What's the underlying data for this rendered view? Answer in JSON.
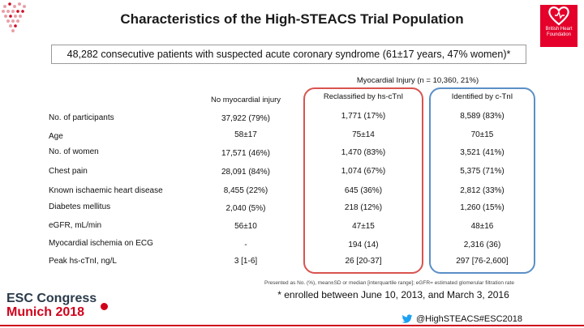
{
  "title": "Characteristics of the High-STEACS Trial Population",
  "subtitle": "48,282 consecutive patients with suspected acute coronary syndrome (61±17 years, 47% women)*",
  "logo": {
    "line1": "British Heart",
    "line2": "Foundation",
    "color": "#e4002b"
  },
  "table": {
    "group_header": "Myocardial Injury (n = 10,360, 21%)",
    "columns": [
      "No myocardial injury",
      "Reclassified by hs-cTnI",
      "Identified by c-TnI"
    ],
    "rows": [
      {
        "label": "No. of participants",
        "values": [
          "37,922 (79%)",
          "1,771 (17%)",
          "8,589 (83%)"
        ]
      },
      {
        "label": "Age",
        "values": [
          "58±17",
          "75±14",
          "70±15"
        ]
      },
      {
        "label": "No. of women",
        "values": [
          "17,571 (46%)",
          "1,470 (83%)",
          "3,521 (41%)"
        ]
      },
      {
        "label": "Chest pain",
        "values": [
          "28,091 (84%)",
          "1,074 (67%)",
          "5,375 (71%)"
        ]
      },
      {
        "label": "Known ischaemic heart disease",
        "values": [
          "8,455 (22%)",
          "645 (36%)",
          "2,812 (33%)"
        ]
      },
      {
        "label": "Diabetes mellitus",
        "values": [
          "2,040 (5%)",
          "218 (12%)",
          "1,260 (15%)"
        ]
      },
      {
        "label": "eGFR, mL/min",
        "values": [
          "56±10",
          "47±15",
          "48±16"
        ]
      },
      {
        "label": "Myocardial ischemia on ECG",
        "values": [
          "-",
          "194 (14)",
          "2,316 (36)"
        ]
      },
      {
        "label": "Peak hs-cTnI, ng/L",
        "values": [
          "3 [1-6]",
          "26 [20-37]",
          "297 [76-2,600]"
        ]
      }
    ]
  },
  "note": "Presented as No. (%), mean±SD or median [interquartile range]; eGFR= estimated glomerular filtration rate",
  "footnote": "* enrolled between June 10, 2013, and March 3, 2016",
  "event": {
    "line1": "ESC Congress",
    "line2": "Munich 2018"
  },
  "social": {
    "handle": "@HighSTEACS#ESC2018",
    "icon": "twitter-bird-icon"
  },
  "colors": {
    "red_box": "#d9534f",
    "blue_box": "#5b8fc7",
    "esc_red": "#d0021b"
  }
}
